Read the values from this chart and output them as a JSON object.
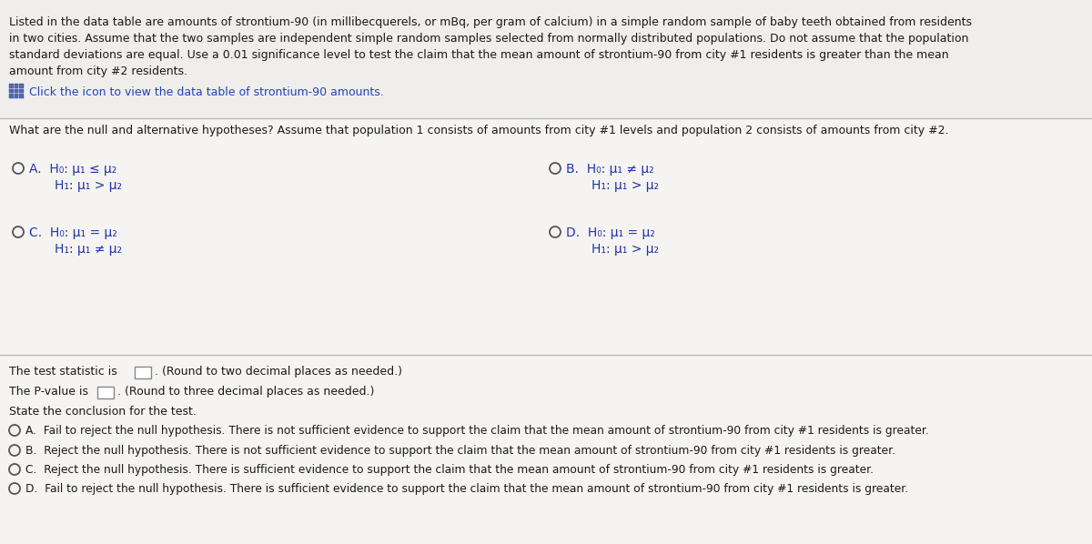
{
  "bg_color": "#d8d8d8",
  "top_section_bg": "#f0eeec",
  "mid_section_bg": "#f5f4f2",
  "bot_section_bg": "#f5f4f2",
  "top_text_line1": "Listed in the data table are amounts of strontium-90 (in millibecquerels, or mBq, per gram of calcium) in a simple random sample of baby teeth obtained from residents",
  "top_text_line2": "in two cities. Assume that the two samples are independent simple random samples selected from normally distributed populations. Do not assume that the population",
  "top_text_line3": "standard deviations are equal. Use a 0.01 significance level to test the claim that the mean amount of strontium-90 from city #1 residents is greater than the mean",
  "top_text_line4": "amount from city #2 residents.",
  "click_text": "Click the icon to view the data table of strontium-90 amounts.",
  "question_text": "What are the null and alternative hypotheses? Assume that population 1 consists of amounts from city #1 levels and population 2 consists of amounts from city #2.",
  "option_A_line1": "H₀: μ₁ ≤ μ₂",
  "option_A_line2": "H₁: μ₁ > μ₂",
  "option_B_line1": "H₀: μ₁ ≠ μ₂",
  "option_B_line2": "H₁: μ₁ > μ₂",
  "option_C_line1": "H₀: μ₁ = μ₂",
  "option_C_line2": "H₁: μ₁ ≠ μ₂",
  "option_D_line1": "H₀: μ₁ = μ₂",
  "option_D_line2": "H₁: μ₁ > μ₂",
  "test_stat_text": "The test statistic is",
  "test_stat_suffix": ". (Round to two decimal places as needed.)",
  "pvalue_text": "The P-value is",
  "pvalue_suffix": ". (Round to three decimal places as needed.)",
  "conclusion_header": "State the conclusion for the test.",
  "concl_A": "Fail to reject the null hypothesis. There is not sufficient evidence to support the claim that the mean amount of strontium-90 from city #1 residents is greater.",
  "concl_B": "Reject the null hypothesis. There is not sufficient evidence to support the claim that the mean amount of strontium-90 from city #1 residents is greater.",
  "concl_C": "Reject the null hypothesis. There is sufficient evidence to support the claim that the mean amount of strontium-90 from city #1 residents is greater.",
  "concl_D": "Fail to reject the null hypothesis. There is sufficient evidence to support the claim that the mean amount of strontium-90 from city #1 residents is greater.",
  "text_color": "#1a1a1a",
  "blue_color": "#2244bb",
  "hyp_color": "#2233aa",
  "sep_color": "#bbbbbb",
  "box_edge_color": "#888888",
  "circle_color": "#555555"
}
